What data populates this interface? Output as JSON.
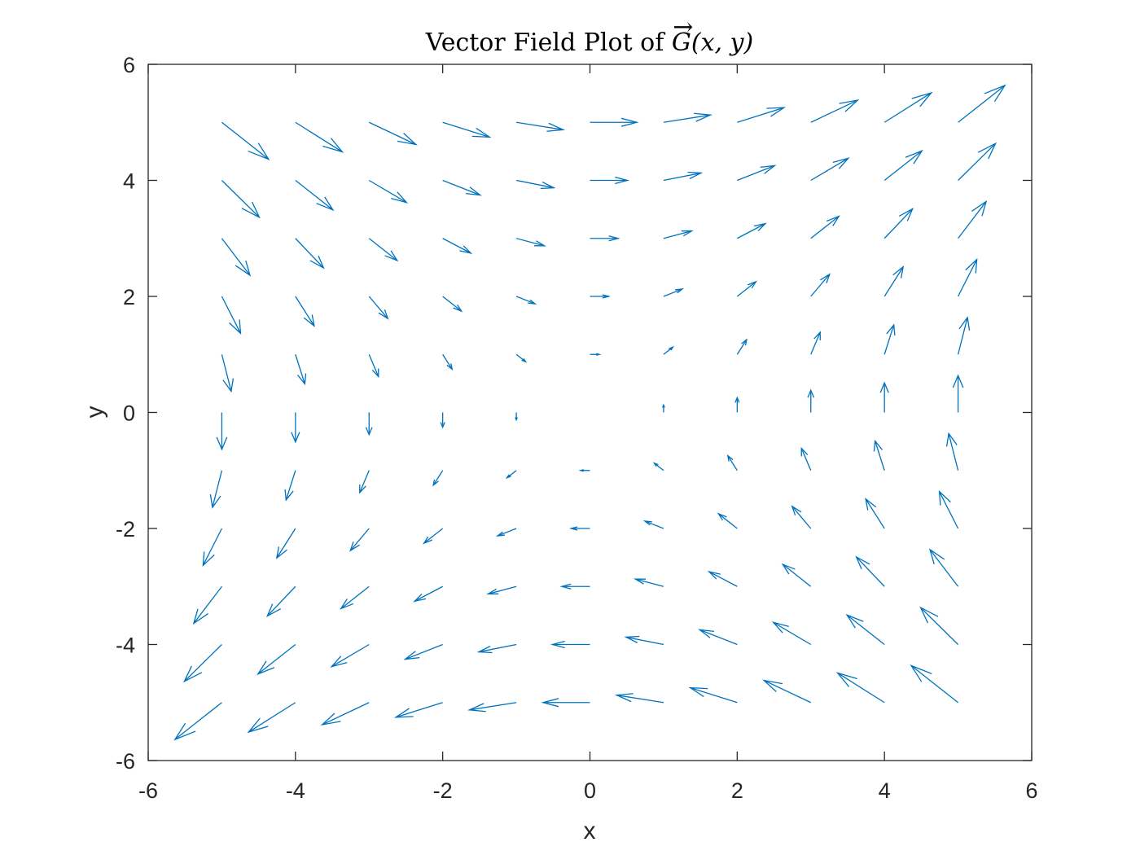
{
  "chart_data": {
    "type": "quiver",
    "title": {
      "prefix": "Vector Field Plot of ",
      "symbol": "G",
      "arrow_accent": "→",
      "args": "(x, y)"
    },
    "xlabel": "x",
    "ylabel": "y",
    "xlim": [
      -6,
      6
    ],
    "ylim": [
      -6,
      6
    ],
    "xticks": [
      -6,
      -4,
      -2,
      0,
      2,
      4,
      6
    ],
    "yticks": [
      -6,
      -4,
      -2,
      0,
      2,
      4,
      6
    ],
    "xtick_labels": [
      "-6",
      "-4",
      "-2",
      "0",
      "2",
      "4",
      "6"
    ],
    "ytick_labels": [
      "-6",
      "-4",
      "-2",
      "0",
      "2",
      "4",
      "6"
    ],
    "grid": false,
    "box": true,
    "arrow_color": "#0072BD",
    "axes_color": "#262626",
    "grid_x": [
      -5,
      -4,
      -3,
      -2,
      -1,
      0,
      1,
      2,
      3,
      4,
      5
    ],
    "grid_y": [
      -5,
      -4,
      -3,
      -2,
      -1,
      0,
      1,
      2,
      3,
      4,
      5
    ],
    "field": {
      "u": "y",
      "v": "x",
      "auto_scale": 0.9,
      "description": "G(x, y) = (y, x)"
    }
  }
}
